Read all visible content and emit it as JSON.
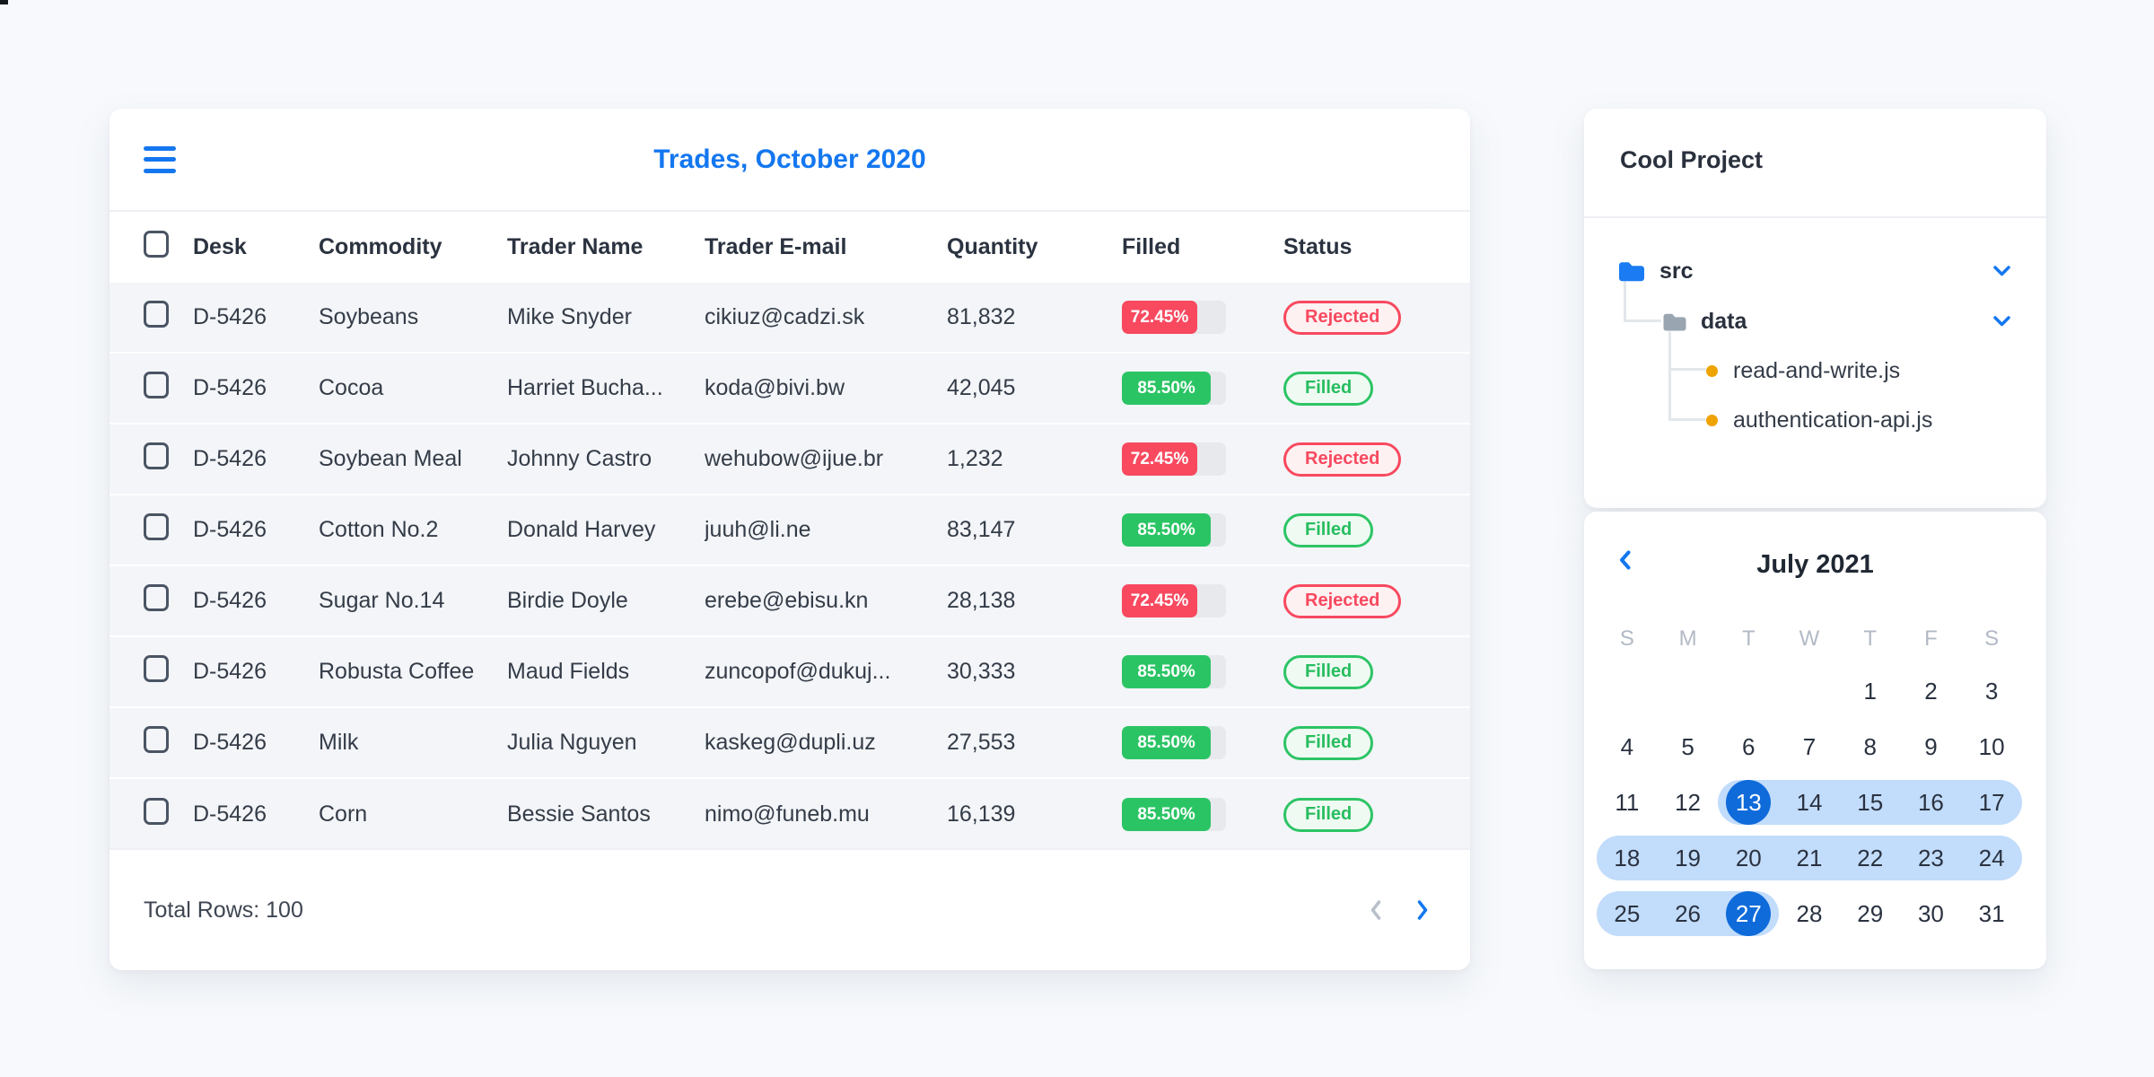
{
  "trades": {
    "title": "Trades, October 2020",
    "menu_icon": "hamburger-menu",
    "columns": [
      "Desk",
      "Commodity",
      "Trader Name",
      "Trader E-mail",
      "Quantity",
      "Filled",
      "Status"
    ],
    "rows": [
      {
        "desk": "D-5426",
        "commodity": "Soybeans",
        "trader_name": "Mike Snyder",
        "trader_email": "cikiuz@cadzi.sk",
        "quantity": "81,832",
        "filled_label": "72.45%",
        "filled_pct": 72.45,
        "status": "Rejected"
      },
      {
        "desk": "D-5426",
        "commodity": "Cocoa",
        "trader_name": "Harriet Bucha...",
        "trader_email": "koda@bivi.bw",
        "quantity": "42,045",
        "filled_label": "85.50%",
        "filled_pct": 85.5,
        "status": "Filled"
      },
      {
        "desk": "D-5426",
        "commodity": "Soybean Meal",
        "trader_name": "Johnny Castro",
        "trader_email": "wehubow@ijue.br",
        "quantity": "1,232",
        "filled_label": "72.45%",
        "filled_pct": 72.45,
        "status": "Rejected"
      },
      {
        "desk": "D-5426",
        "commodity": "Cotton No.2",
        "trader_name": "Donald Harvey",
        "trader_email": "juuh@li.ne",
        "quantity": "83,147",
        "filled_label": "85.50%",
        "filled_pct": 85.5,
        "status": "Filled"
      },
      {
        "desk": "D-5426",
        "commodity": "Sugar No.14",
        "trader_name": "Birdie Doyle",
        "trader_email": "erebe@ebisu.kn",
        "quantity": "28,138",
        "filled_label": "72.45%",
        "filled_pct": 72.45,
        "status": "Rejected"
      },
      {
        "desk": "D-5426",
        "commodity": "Robusta Coffee",
        "trader_name": "Maud Fields",
        "trader_email": "zuncopof@dukuj...",
        "quantity": "30,333",
        "filled_label": "85.50%",
        "filled_pct": 85.5,
        "status": "Filled"
      },
      {
        "desk": "D-5426",
        "commodity": "Milk",
        "trader_name": "Julia Nguyen",
        "trader_email": "kaskeg@dupli.uz",
        "quantity": "27,553",
        "filled_label": "85.50%",
        "filled_pct": 85.5,
        "status": "Filled"
      },
      {
        "desk": "D-5426",
        "commodity": "Corn",
        "trader_name": "Bessie Santos",
        "trader_email": "nimo@funeb.mu",
        "quantity": "16,139",
        "filled_label": "85.50%",
        "filled_pct": 85.5,
        "status": "Filled"
      }
    ],
    "footer": {
      "total_rows_label": "Total Rows: 100"
    },
    "pagination": {
      "prev_icon": "chevron-left",
      "next_icon": "chevron-right",
      "prev_enabled": false,
      "next_enabled": true
    }
  },
  "project": {
    "title": "Cool Project",
    "nodes": [
      {
        "type": "folder",
        "name": "src",
        "icon": "folder-icon-blue",
        "expand_icon": "chevron-down"
      },
      {
        "type": "folder",
        "name": "data",
        "icon": "folder-icon-gray",
        "expand_icon": "chevron-down"
      },
      {
        "type": "file",
        "name": "read-and-write.js",
        "icon": "orange-dot"
      },
      {
        "type": "file",
        "name": "authentication-api.js",
        "icon": "orange-dot"
      }
    ]
  },
  "calendar": {
    "prev_icon": "chevron-left",
    "title": "July 2021",
    "weekdays": [
      "S",
      "M",
      "T",
      "W",
      "T",
      "F",
      "S"
    ],
    "first_day_column": 4,
    "num_days": 31,
    "range_start": 13,
    "range_end": 27,
    "circled_days": [
      13,
      27
    ]
  },
  "colors": {
    "accent_blue": "#1477f0",
    "selected_day_blue": "#0f6bda",
    "range_band_blue": "#c2dcfb",
    "rejected_red": "#f8495f",
    "filled_green": "#2bc464",
    "file_dot_orange": "#efa300",
    "folder_gray": "#9aa5b2",
    "row_background": "#f3f5f8"
  }
}
